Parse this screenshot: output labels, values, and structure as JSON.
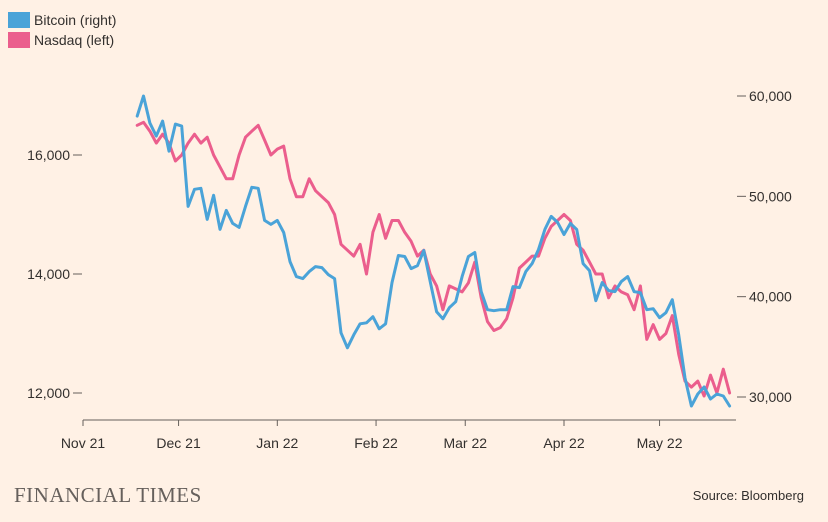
{
  "chart_data": {
    "type": "line",
    "title": "",
    "x_ticks": [
      "Nov 21",
      "Dec 21",
      "Jan 22",
      "Feb 22",
      "Mar 22",
      "Apr 22",
      "May 22"
    ],
    "left_axis": {
      "series": "Nasdaq",
      "ticks": [
        "12,000",
        "14,000",
        "16,000"
      ],
      "tick_values": [
        12000,
        14000,
        16000
      ],
      "ylim": [
        11500,
        17500
      ]
    },
    "right_axis": {
      "series": "Bitcoin",
      "ticks": [
        "30,000",
        "40,000",
        "50,000",
        "60,000"
      ],
      "tick_values": [
        30000,
        40000,
        50000,
        60000
      ],
      "ylim": [
        27000,
        63000
      ]
    },
    "legend": [
      {
        "label": "Bitcoin (right)",
        "color": "#4aa3d8"
      },
      {
        "label": "Nasdaq (left)",
        "color": "#eb5e8d"
      }
    ],
    "series": [
      {
        "name": "Bitcoin",
        "axis": "right",
        "color": "#4aa3d8",
        "x": [
          "2021-11-18",
          "2021-11-20",
          "2021-11-22",
          "2021-11-24",
          "2021-11-26",
          "2021-11-28",
          "2021-11-30",
          "2021-12-02",
          "2021-12-04",
          "2021-12-06",
          "2021-12-08",
          "2021-12-10",
          "2021-12-12",
          "2021-12-14",
          "2021-12-16",
          "2021-12-18",
          "2021-12-20",
          "2021-12-22",
          "2021-12-24",
          "2021-12-26",
          "2021-12-28",
          "2021-12-30",
          "2022-01-01",
          "2022-01-03",
          "2022-01-05",
          "2022-01-07",
          "2022-01-09",
          "2022-01-11",
          "2022-01-13",
          "2022-01-15",
          "2022-01-17",
          "2022-01-19",
          "2022-01-21",
          "2022-01-23",
          "2022-01-25",
          "2022-01-27",
          "2022-01-29",
          "2022-01-31",
          "2022-02-02",
          "2022-02-04",
          "2022-02-06",
          "2022-02-08",
          "2022-02-10",
          "2022-02-12",
          "2022-02-14",
          "2022-02-16",
          "2022-02-18",
          "2022-02-20",
          "2022-02-22",
          "2022-02-24",
          "2022-02-26",
          "2022-02-28",
          "2022-03-02",
          "2022-03-04",
          "2022-03-06",
          "2022-03-08",
          "2022-03-10",
          "2022-03-12",
          "2022-03-14",
          "2022-03-16",
          "2022-03-18",
          "2022-03-20",
          "2022-03-22",
          "2022-03-24",
          "2022-03-26",
          "2022-03-28",
          "2022-03-30",
          "2022-04-01",
          "2022-04-03",
          "2022-04-05",
          "2022-04-07",
          "2022-04-09",
          "2022-04-11",
          "2022-04-13",
          "2022-04-15",
          "2022-04-17",
          "2022-04-19",
          "2022-04-21",
          "2022-04-23",
          "2022-04-25",
          "2022-04-27",
          "2022-04-29",
          "2022-05-01",
          "2022-05-03",
          "2022-05-05",
          "2022-05-07",
          "2022-05-09",
          "2022-05-11",
          "2022-05-13",
          "2022-05-15",
          "2022-05-17",
          "2022-05-19",
          "2022-05-21",
          "2022-05-23"
        ],
        "values": [
          58000,
          60000,
          57300,
          56000,
          57500,
          54500,
          57200,
          57000,
          49000,
          50700,
          50800,
          47700,
          50100,
          46700,
          48600,
          47300,
          46900,
          49000,
          50900,
          50800,
          47600,
          47200,
          47600,
          46400,
          43500,
          42000,
          41800,
          42500,
          43000,
          42900,
          42200,
          41800,
          36400,
          34900,
          36200,
          37300,
          37400,
          38000,
          36800,
          37300,
          41400,
          44100,
          44000,
          42800,
          43100,
          44600,
          41500,
          38500,
          37800,
          38900,
          39500,
          42000,
          44000,
          44400,
          40500,
          38700,
          38600,
          38700,
          38700,
          41000,
          40900,
          42500,
          43300,
          44700,
          46700,
          48000,
          47400,
          46200,
          47300,
          46700,
          43300,
          42600,
          39600,
          41400,
          40600,
          40500,
          41500,
          42000,
          40500,
          40400,
          38700,
          38800,
          37900,
          38400,
          39700,
          36200,
          31900,
          29100,
          30300,
          31000,
          29800,
          30300,
          30100,
          29100
        ]
      },
      {
        "name": "Nasdaq",
        "axis": "left",
        "color": "#eb5e8d",
        "x": [
          "2021-11-18",
          "2021-11-20",
          "2021-11-22",
          "2021-11-24",
          "2021-11-26",
          "2021-11-28",
          "2021-11-30",
          "2021-12-02",
          "2021-12-04",
          "2021-12-06",
          "2021-12-08",
          "2021-12-10",
          "2021-12-12",
          "2021-12-14",
          "2021-12-16",
          "2021-12-18",
          "2021-12-20",
          "2021-12-22",
          "2021-12-24",
          "2021-12-26",
          "2021-12-28",
          "2021-12-30",
          "2022-01-01",
          "2022-01-03",
          "2022-01-05",
          "2022-01-07",
          "2022-01-09",
          "2022-01-11",
          "2022-01-13",
          "2022-01-15",
          "2022-01-17",
          "2022-01-19",
          "2022-01-21",
          "2022-01-23",
          "2022-01-25",
          "2022-01-27",
          "2022-01-29",
          "2022-01-31",
          "2022-02-02",
          "2022-02-04",
          "2022-02-06",
          "2022-02-08",
          "2022-02-10",
          "2022-02-12",
          "2022-02-14",
          "2022-02-16",
          "2022-02-18",
          "2022-02-20",
          "2022-02-22",
          "2022-02-24",
          "2022-02-26",
          "2022-02-28",
          "2022-03-02",
          "2022-03-04",
          "2022-03-06",
          "2022-03-08",
          "2022-03-10",
          "2022-03-12",
          "2022-03-14",
          "2022-03-16",
          "2022-03-18",
          "2022-03-20",
          "2022-03-22",
          "2022-03-24",
          "2022-03-26",
          "2022-03-28",
          "2022-03-30",
          "2022-04-01",
          "2022-04-03",
          "2022-04-05",
          "2022-04-07",
          "2022-04-09",
          "2022-04-11",
          "2022-04-13",
          "2022-04-15",
          "2022-04-17",
          "2022-04-19",
          "2022-04-21",
          "2022-04-23",
          "2022-04-25",
          "2022-04-27",
          "2022-04-29",
          "2022-05-01",
          "2022-05-03",
          "2022-05-05",
          "2022-05-07",
          "2022-05-09",
          "2022-05-11",
          "2022-05-13",
          "2022-05-15",
          "2022-05-17",
          "2022-05-19",
          "2022-05-21",
          "2022-05-23"
        ],
        "values": [
          16500,
          16550,
          16400,
          16200,
          16350,
          16200,
          15900,
          16000,
          16200,
          16350,
          16200,
          16300,
          16000,
          15800,
          15600,
          15600,
          16000,
          16300,
          16400,
          16500,
          16250,
          16000,
          16100,
          16150,
          15600,
          15300,
          15300,
          15600,
          15400,
          15300,
          15200,
          15000,
          14500,
          14400,
          14300,
          14500,
          14000,
          14700,
          15000,
          14600,
          14900,
          14900,
          14700,
          14550,
          14300,
          14400,
          14000,
          13800,
          13400,
          13800,
          13750,
          13700,
          13850,
          14200,
          13600,
          13200,
          13050,
          13100,
          13250,
          13600,
          14100,
          14200,
          14300,
          14300,
          14600,
          14800,
          14900,
          15000,
          14900,
          14500,
          14400,
          14200,
          14000,
          14000,
          13600,
          13800,
          13700,
          13650,
          13400,
          13800,
          12900,
          13150,
          12900,
          13000,
          13300,
          12650,
          12200,
          12100,
          12200,
          11950,
          12300,
          12000,
          12400,
          12000
        ]
      }
    ]
  },
  "source": "Source: Bloomberg",
  "brand": "FINANCIAL TIMES"
}
